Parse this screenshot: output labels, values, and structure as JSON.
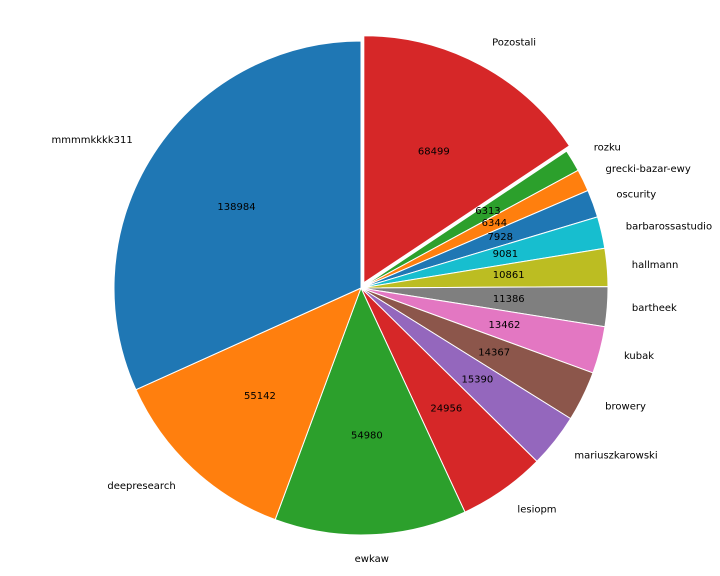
{
  "chart_data": {
    "type": "pie",
    "title": "",
    "slices": [
      {
        "label": "Pozostali",
        "value": 68499,
        "color": "#d62728"
      },
      {
        "label": "rozku",
        "value": 6313,
        "color": "#2ca02c"
      },
      {
        "label": "grecki-bazar-ewy",
        "value": 6344,
        "color": "#ff7f0e"
      },
      {
        "label": "oscurity",
        "value": 7928,
        "color": "#1f77b4"
      },
      {
        "label": "barbarossastudio",
        "value": 9081,
        "color": "#17becf"
      },
      {
        "label": "hallmann",
        "value": 10861,
        "color": "#bcbd22"
      },
      {
        "label": "bartheek",
        "value": 11386,
        "color": "#7f7f7f"
      },
      {
        "label": "kubak",
        "value": 13462,
        "color": "#e377c2"
      },
      {
        "label": "browery",
        "value": 14367,
        "color": "#8c564b"
      },
      {
        "label": "mariuszkarowski",
        "value": 15390,
        "color": "#9467bd"
      },
      {
        "label": "lesiopm",
        "value": 24956,
        "color": "#d62728"
      },
      {
        "label": "ewkaw",
        "value": 54980,
        "color": "#2ca02c"
      },
      {
        "label": "deepresearch",
        "value": 55142,
        "color": "#ff7f0e"
      },
      {
        "label": "mmmmkkkk311",
        "value": 138984,
        "color": "#1f77b4"
      }
    ],
    "exploded": [
      "Pozostali"
    ],
    "direction": "clockwise",
    "start": "top"
  }
}
